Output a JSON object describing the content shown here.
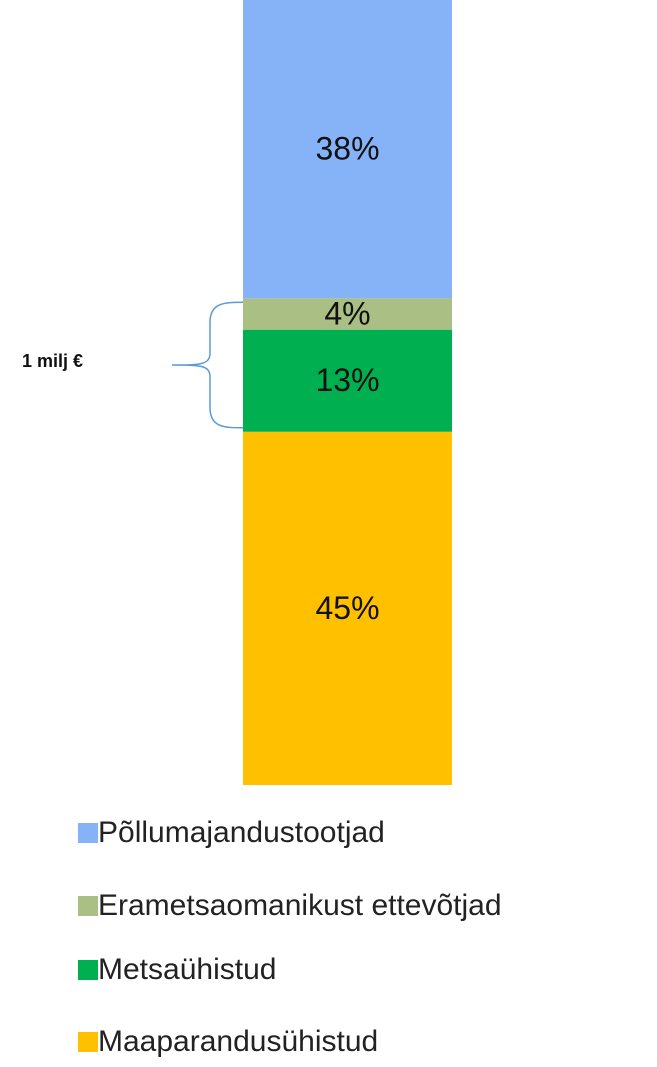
{
  "chart_data": {
    "type": "bar",
    "stacked": true,
    "annotation": "1 milj €",
    "series": [
      {
        "name": "Põllumajandustootjad",
        "color": "#86b3f7",
        "values": [
          38
        ],
        "value_labels": [
          "38%"
        ]
      },
      {
        "name": "Erametsaomanikust ettevõtjad",
        "color": "#a9bf84",
        "values": [
          4
        ],
        "value_labels": [
          "4%"
        ]
      },
      {
        "name": "Metsaühistud",
        "color": "#00b050",
        "values": [
          13
        ],
        "value_labels": [
          "13%"
        ]
      },
      {
        "name": "Maaparandusühistud",
        "color": "#ffc000",
        "values": [
          45
        ],
        "value_labels": [
          "45%"
        ]
      }
    ]
  }
}
